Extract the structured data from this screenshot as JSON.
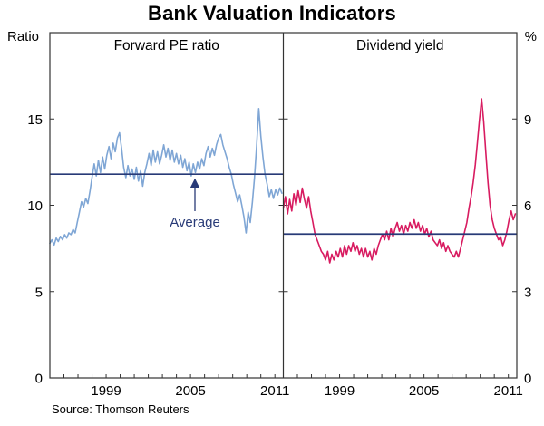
{
  "title": "Bank Valuation Indicators",
  "source": "Source: Thomson Reuters",
  "average_label": "Average",
  "chart_data": [
    {
      "type": "line",
      "title": "Forward PE ratio",
      "ylabel": "Ratio",
      "ylim": [
        0,
        20
      ],
      "yticks": [
        0,
        5,
        10,
        15
      ],
      "xlim": [
        1995,
        2011.6
      ],
      "xticks": [
        1999,
        2005,
        2011
      ],
      "series": [
        {
          "name": "Forward PE ratio",
          "color": "#7fa6d5",
          "x0": 1995,
          "dx": 0.15,
          "y": [
            7.8,
            8.0,
            7.7,
            8.1,
            7.9,
            8.2,
            8.0,
            8.3,
            8.1,
            8.4,
            8.3,
            8.6,
            8.4,
            9.0,
            9.6,
            10.2,
            9.9,
            10.4,
            10.1,
            10.8,
            11.6,
            12.4,
            11.7,
            12.6,
            11.9,
            12.8,
            12.1,
            12.9,
            13.4,
            12.7,
            13.6,
            13.1,
            13.9,
            14.2,
            13.3,
            12.2,
            11.6,
            12.3,
            11.7,
            12.1,
            11.5,
            12.2,
            11.4,
            12.0,
            11.1,
            11.9,
            12.4,
            13.0,
            12.3,
            13.2,
            12.5,
            13.1,
            12.4,
            12.9,
            13.5,
            12.8,
            13.3,
            12.6,
            13.2,
            12.5,
            13.0,
            12.4,
            12.9,
            12.2,
            12.7,
            12.0,
            12.5,
            11.7,
            12.4,
            11.9,
            12.5,
            12.1,
            12.7,
            12.3,
            13.0,
            13.4,
            12.8,
            13.3,
            12.9,
            13.5,
            13.9,
            14.1,
            13.5,
            13.1,
            12.7,
            12.2,
            11.8,
            11.2,
            10.7,
            10.2,
            10.6,
            10.0,
            9.3,
            8.4,
            9.6,
            9.0,
            10.2,
            11.6,
            13.4,
            15.6,
            14.0,
            12.8,
            11.8,
            11.2,
            10.5,
            10.9,
            10.4,
            10.9,
            10.6,
            11.0,
            10.7
          ]
        },
        {
          "name": "Average",
          "type": "hline",
          "value": 11.8,
          "color": "#283a77"
        }
      ]
    },
    {
      "type": "line",
      "title": "Dividend yield",
      "ylabel": "%",
      "ylim": [
        0,
        12
      ],
      "yticks": [
        0,
        3,
        6,
        9
      ],
      "xlim": [
        1995,
        2011.6
      ],
      "xticks": [
        1999,
        2005,
        2011
      ],
      "series": [
        {
          "name": "Dividend yield",
          "color": "#d81b60",
          "x0": 1995,
          "dx": 0.15,
          "y": [
            5.9,
            6.3,
            5.7,
            6.2,
            5.8,
            6.4,
            6.0,
            6.5,
            6.1,
            6.6,
            6.2,
            5.9,
            6.3,
            5.8,
            5.4,
            5.0,
            4.8,
            4.6,
            4.4,
            4.3,
            4.1,
            4.4,
            4.0,
            4.3,
            4.1,
            4.4,
            4.2,
            4.5,
            4.2,
            4.6,
            4.3,
            4.6,
            4.4,
            4.7,
            4.4,
            4.6,
            4.3,
            4.5,
            4.2,
            4.5,
            4.2,
            4.4,
            4.1,
            4.5,
            4.3,
            4.6,
            4.8,
            5.0,
            4.8,
            5.1,
            4.8,
            5.2,
            4.9,
            5.2,
            5.4,
            5.1,
            5.3,
            5.0,
            5.3,
            5.1,
            5.4,
            5.2,
            5.5,
            5.2,
            5.4,
            5.1,
            5.3,
            5.0,
            5.2,
            4.9,
            5.1,
            4.8,
            4.7,
            4.6,
            4.8,
            4.5,
            4.7,
            4.4,
            4.6,
            4.4,
            4.3,
            4.2,
            4.4,
            4.2,
            4.5,
            4.8,
            5.1,
            5.4,
            5.9,
            6.3,
            6.8,
            7.4,
            8.2,
            9.0,
            9.7,
            8.9,
            7.8,
            6.8,
            6.0,
            5.5,
            5.2,
            5.0,
            4.8,
            4.9,
            4.6,
            4.8,
            5.1,
            5.5,
            5.8,
            5.5,
            5.7
          ]
        },
        {
          "name": "Average",
          "type": "hline",
          "value": 5.0,
          "color": "#283a77"
        }
      ]
    }
  ]
}
